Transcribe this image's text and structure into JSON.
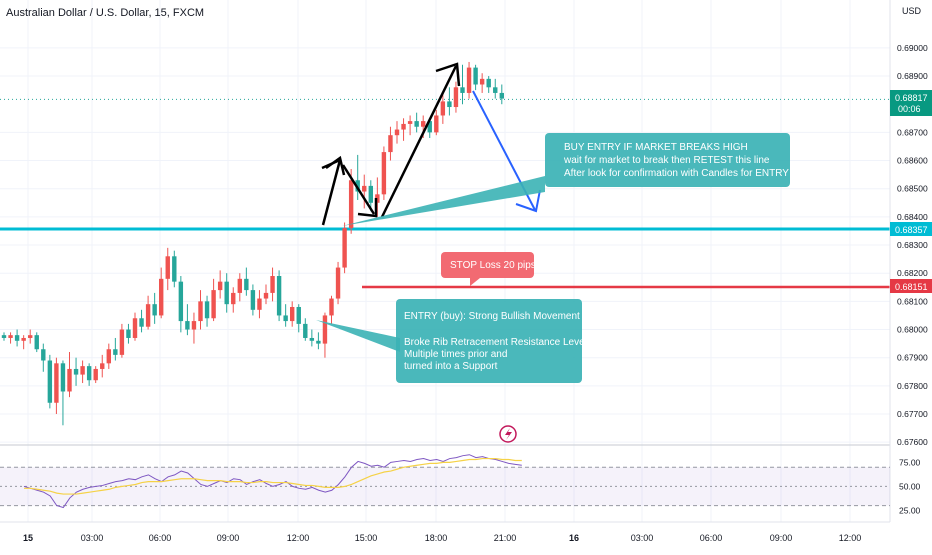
{
  "header": {
    "symbol_title": "Australian Dollar / U.S. Dollar, 15, FXCM",
    "currency": "USD"
  },
  "price_axis": {
    "ticks": [
      "0.69000",
      "0.68900",
      "0.68700",
      "0.68600",
      "0.68500",
      "0.68400",
      "0.68300",
      "0.68200",
      "0.68100",
      "0.68000",
      "0.67900",
      "0.67800",
      "0.67700",
      "0.67600"
    ],
    "current_price": "0.68817",
    "countdown": "00:06",
    "resistance_label": "0.68357",
    "stop_label": "0.68151"
  },
  "time_axis": {
    "ticks": [
      "15",
      "03:00",
      "06:00",
      "09:00",
      "12:00",
      "15:00",
      "18:00",
      "21:00",
      "16",
      "03:00",
      "06:00",
      "09:00",
      "12:00"
    ]
  },
  "rsi_axis": {
    "ticks": [
      "75.00",
      "50.00",
      "25.00"
    ]
  },
  "annotations": {
    "buy_entry": {
      "title": "BUY ENTRY IF MARKET BREAKS HIGH",
      "line1": "wait for market to break then RETEST this line",
      "line2": "After look for confirmation with Candles for ENTRY"
    },
    "stop_loss": {
      "text": "STOP Loss 20 pips"
    },
    "entry": {
      "title": "ENTRY (buy): Strong Bullish Movement",
      "line1": "Broke Rib Retracement Resistance Level",
      "line2": "Multiple times prior and",
      "line3": "turned into a Support"
    }
  },
  "colors": {
    "up": "#ef5350",
    "down": "#26a69a",
    "resistance": "#00bcd4",
    "stop": "#e53945",
    "callout": "#3bb2b5",
    "stop_callout": "#f26a72",
    "projection": "#2962ff",
    "current_price_bg": "#089981",
    "rsi_line": "#7e57c2",
    "rsi_ma": "#f5d247"
  },
  "chart_data": {
    "type": "candlestick",
    "x_range": [
      "15 00:00",
      "16 14:00"
    ],
    "ylim": [
      0.6759,
      0.6917
    ],
    "levels": {
      "resistance": 0.68357,
      "stop": 0.68151,
      "current": 0.68817
    },
    "candles": [
      [
        0.6798,
        0.6799,
        0.6796,
        0.6797
      ],
      [
        0.6797,
        0.6799,
        0.6795,
        0.6798
      ],
      [
        0.6798,
        0.68,
        0.6794,
        0.6796
      ],
      [
        0.6796,
        0.6798,
        0.6793,
        0.6797
      ],
      [
        0.6797,
        0.68,
        0.6795,
        0.6798
      ],
      [
        0.6798,
        0.6799,
        0.6792,
        0.6793
      ],
      [
        0.6793,
        0.6795,
        0.6785,
        0.6789
      ],
      [
        0.6789,
        0.6791,
        0.6772,
        0.6774
      ],
      [
        0.6774,
        0.679,
        0.677,
        0.6788
      ],
      [
        0.6788,
        0.6789,
        0.6766,
        0.6778
      ],
      [
        0.6778,
        0.6792,
        0.6776,
        0.6786
      ],
      [
        0.6786,
        0.679,
        0.678,
        0.6784
      ],
      [
        0.6784,
        0.6789,
        0.6781,
        0.6787
      ],
      [
        0.6787,
        0.6788,
        0.678,
        0.6782
      ],
      [
        0.6782,
        0.6787,
        0.6781,
        0.6786
      ],
      [
        0.6786,
        0.6791,
        0.6783,
        0.6788
      ],
      [
        0.6788,
        0.6795,
        0.6786,
        0.6793
      ],
      [
        0.6793,
        0.6797,
        0.6789,
        0.6791
      ],
      [
        0.6791,
        0.6802,
        0.679,
        0.68
      ],
      [
        0.68,
        0.6802,
        0.6795,
        0.6797
      ],
      [
        0.6797,
        0.6806,
        0.6796,
        0.6804
      ],
      [
        0.6804,
        0.6807,
        0.6799,
        0.6801
      ],
      [
        0.6801,
        0.6812,
        0.68,
        0.6809
      ],
      [
        0.6809,
        0.6813,
        0.6802,
        0.6805
      ],
      [
        0.6805,
        0.6822,
        0.6804,
        0.6818
      ],
      [
        0.6818,
        0.6829,
        0.6814,
        0.6826
      ],
      [
        0.6826,
        0.6828,
        0.6815,
        0.6817
      ],
      [
        0.6817,
        0.6819,
        0.6799,
        0.6803
      ],
      [
        0.6803,
        0.6809,
        0.6798,
        0.68
      ],
      [
        0.68,
        0.6806,
        0.6795,
        0.6803
      ],
      [
        0.6803,
        0.6814,
        0.68,
        0.681
      ],
      [
        0.681,
        0.6812,
        0.6801,
        0.6804
      ],
      [
        0.6804,
        0.6818,
        0.6803,
        0.6814
      ],
      [
        0.6814,
        0.6821,
        0.6811,
        0.6817
      ],
      [
        0.6817,
        0.682,
        0.6806,
        0.6809
      ],
      [
        0.6809,
        0.6815,
        0.6806,
        0.6813
      ],
      [
        0.6813,
        0.682,
        0.681,
        0.6818
      ],
      [
        0.6818,
        0.6822,
        0.6812,
        0.6814
      ],
      [
        0.6814,
        0.6816,
        0.6805,
        0.6807
      ],
      [
        0.6807,
        0.6814,
        0.6804,
        0.6811
      ],
      [
        0.6811,
        0.6816,
        0.6809,
        0.6813
      ],
      [
        0.6813,
        0.6822,
        0.681,
        0.6819
      ],
      [
        0.6819,
        0.6821,
        0.6803,
        0.6805
      ],
      [
        0.6805,
        0.6809,
        0.6801,
        0.6803
      ],
      [
        0.6803,
        0.681,
        0.6801,
        0.6808
      ],
      [
        0.6808,
        0.6809,
        0.6799,
        0.6802
      ],
      [
        0.6802,
        0.6804,
        0.6796,
        0.6797
      ],
      [
        0.6797,
        0.68,
        0.6794,
        0.6796
      ],
      [
        0.6796,
        0.6799,
        0.6793,
        0.6795
      ],
      [
        0.6795,
        0.6806,
        0.679,
        0.6805
      ],
      [
        0.6805,
        0.6812,
        0.6802,
        0.6811
      ],
      [
        0.6811,
        0.6824,
        0.6809,
        0.6822
      ],
      [
        0.6822,
        0.6838,
        0.682,
        0.6836
      ],
      [
        0.6836,
        0.6857,
        0.6834,
        0.6853
      ],
      [
        0.6853,
        0.6862,
        0.6846,
        0.6849
      ],
      [
        0.6849,
        0.6855,
        0.6843,
        0.6851
      ],
      [
        0.6851,
        0.6853,
        0.6842,
        0.6845
      ],
      [
        0.6845,
        0.6854,
        0.684,
        0.6848
      ],
      [
        0.6848,
        0.6865,
        0.6846,
        0.6863
      ],
      [
        0.6863,
        0.6872,
        0.686,
        0.6869
      ],
      [
        0.6869,
        0.6874,
        0.6866,
        0.6871
      ],
      [
        0.6871,
        0.6875,
        0.6867,
        0.6873
      ],
      [
        0.6873,
        0.6876,
        0.6869,
        0.6874
      ],
      [
        0.6874,
        0.6877,
        0.687,
        0.6872
      ],
      [
        0.6872,
        0.6876,
        0.6868,
        0.6874
      ],
      [
        0.6874,
        0.6875,
        0.6868,
        0.687
      ],
      [
        0.687,
        0.6878,
        0.6869,
        0.6876
      ],
      [
        0.6876,
        0.6884,
        0.6873,
        0.6881
      ],
      [
        0.6881,
        0.6886,
        0.6876,
        0.6879
      ],
      [
        0.6879,
        0.6888,
        0.6877,
        0.6886
      ],
      [
        0.6886,
        0.6894,
        0.688,
        0.6884
      ],
      [
        0.6884,
        0.6895,
        0.6882,
        0.6893
      ],
      [
        0.6893,
        0.6894,
        0.6885,
        0.6887
      ],
      [
        0.6887,
        0.6891,
        0.6884,
        0.6889
      ],
      [
        0.6889,
        0.689,
        0.6884,
        0.6886
      ],
      [
        0.6886,
        0.6889,
        0.6882,
        0.6884
      ],
      [
        0.6884,
        0.6887,
        0.688,
        0.6882
      ]
    ],
    "rsi": {
      "ylim": [
        15,
        90
      ],
      "levels": [
        70,
        50,
        30
      ],
      "values": [
        50,
        48,
        46,
        44,
        40,
        30,
        28,
        38,
        44,
        47,
        49,
        50,
        51,
        53,
        55,
        56,
        58,
        57,
        60,
        62,
        58,
        55,
        60,
        62,
        66,
        64,
        58,
        52,
        50,
        53,
        56,
        54,
        58,
        57,
        52,
        55,
        57,
        53,
        50,
        52,
        55,
        50,
        48,
        47,
        49,
        46,
        44,
        46,
        52,
        60,
        70,
        76,
        74,
        71,
        72,
        70,
        75,
        76,
        77,
        76,
        78,
        79,
        77,
        78,
        76,
        79,
        80,
        82,
        83,
        80,
        81,
        79,
        78,
        76,
        74,
        73,
        72
      ],
      "ma": [
        48,
        48,
        47,
        46,
        45,
        43,
        42,
        42,
        42,
        43,
        44,
        45,
        46,
        47,
        49,
        50,
        51,
        52,
        54,
        55,
        55,
        55,
        56,
        57,
        58,
        58,
        58,
        57,
        56,
        56,
        56,
        55,
        55,
        55,
        54,
        54,
        55,
        55,
        54,
        54,
        54,
        53,
        52,
        51,
        51,
        50,
        49,
        49,
        49,
        50,
        52,
        55,
        58,
        61,
        63,
        65,
        66,
        68,
        70,
        71,
        72,
        73,
        74,
        74,
        75,
        75,
        76,
        77,
        78,
        78,
        79,
        79,
        79,
        78,
        78,
        77,
        77
      ]
    }
  }
}
